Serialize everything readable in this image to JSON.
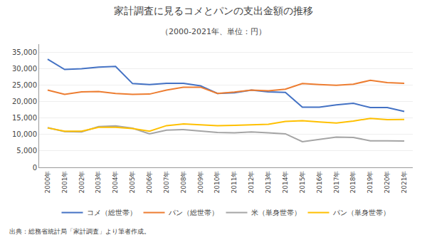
{
  "chart_data": {
    "type": "line",
    "title": "家計調査に見るコメとパンの支出金額の推移",
    "subtitle": "（2000-2021年、単位：円）",
    "annotations": [
      "出典：総務省統計局「家計調査」より筆者作成。"
    ],
    "categories": [
      "2000年",
      "2001年",
      "2002年",
      "2003年",
      "2004年",
      "2005年",
      "2006年",
      "2007年",
      "2008年",
      "2009年",
      "2010年",
      "2011年",
      "2012年",
      "2013年",
      "2014年",
      "2015年",
      "2016年",
      "2017年",
      "2018年",
      "2019年",
      "2020年",
      "2021年"
    ],
    "series": [
      {
        "name": "コメ（総世帯）",
        "color": "#4472C4",
        "values": [
          32900,
          29800,
          30000,
          30500,
          30700,
          25500,
          25200,
          25600,
          25600,
          24800,
          22500,
          22700,
          23500,
          23000,
          22800,
          18300,
          18300,
          19000,
          19500,
          18200,
          18200,
          17000
        ]
      },
      {
        "name": "パン（総世帯）",
        "color": "#ED7D31",
        "values": [
          23500,
          22200,
          23000,
          23100,
          22500,
          22200,
          22300,
          23500,
          24400,
          24400,
          22500,
          22900,
          23500,
          23300,
          23800,
          25500,
          25200,
          25000,
          25300,
          26500,
          25800,
          25600
        ]
      },
      {
        "name": "米（単身世帯）",
        "color": "#A5A5A5",
        "values": [
          12100,
          10900,
          10800,
          12400,
          12600,
          11900,
          10200,
          11300,
          11500,
          11100,
          10600,
          10500,
          10800,
          10500,
          10200,
          7800,
          8500,
          9200,
          9100,
          8100,
          8100,
          8000
        ]
      },
      {
        "name": "パン（単身世帯）",
        "color": "#FFC000",
        "values": [
          12000,
          11000,
          11000,
          12200,
          12200,
          11800,
          11000,
          12700,
          13200,
          13000,
          12700,
          12800,
          13000,
          13100,
          14000,
          14200,
          13800,
          13500,
          14100,
          14900,
          14500,
          14600
        ]
      }
    ],
    "ylim": [
      0,
      37500
    ],
    "yticks": [
      0,
      {
        "value": 5000,
        "label": "5,000"
      },
      {
        "value": 10000,
        "label": "10,000"
      },
      {
        "value": 15000,
        "label": "15,000"
      },
      {
        "value": 20000,
        "label": "20,000"
      },
      {
        "value": 25000,
        "label": "25,000"
      },
      {
        "value": 30000,
        "label": "30,000"
      },
      {
        "value": 35000,
        "label": "35,000"
      }
    ],
    "grid": "y",
    "legend": "bottom"
  }
}
